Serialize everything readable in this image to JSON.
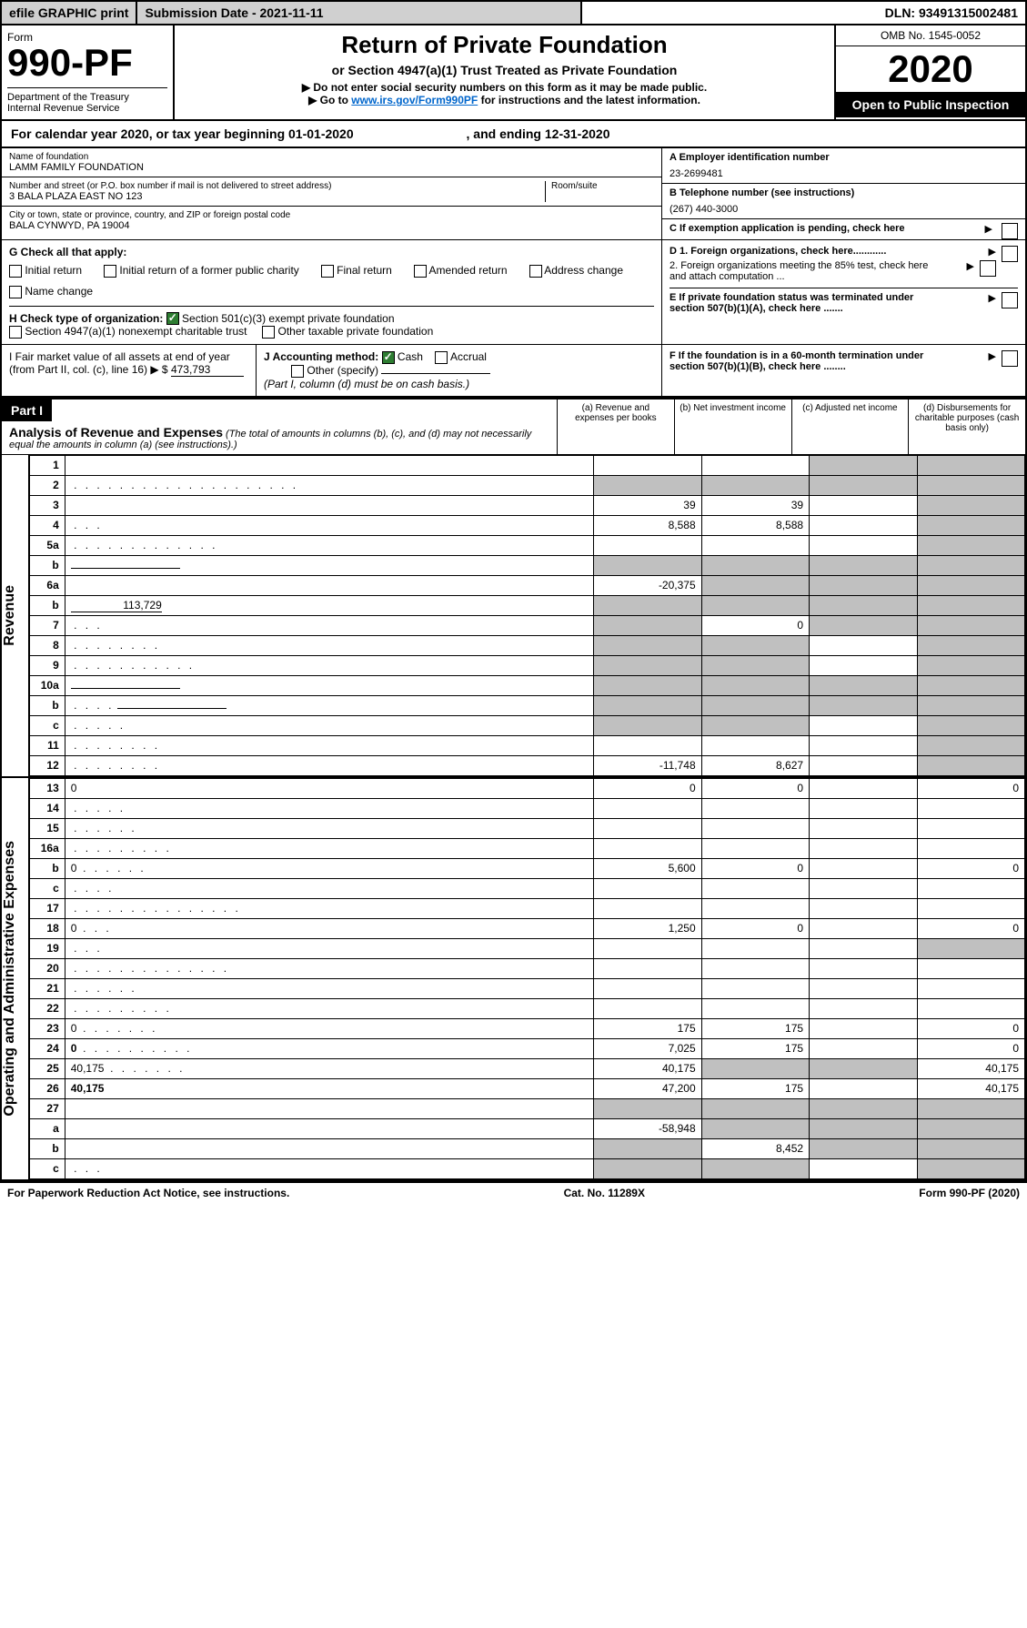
{
  "topbar": {
    "efile": "efile GRAPHIC print",
    "submission": "Submission Date - 2021-11-11",
    "dln": "DLN: 93491315002481"
  },
  "header": {
    "form_word": "Form",
    "form_number": "990-PF",
    "dept": "Department of the Treasury\nInternal Revenue Service",
    "title": "Return of Private Foundation",
    "subtitle1": "or Section 4947(a)(1) Trust Treated as Private Foundation",
    "subtitle2a": "▶ Do not enter social security numbers on this form as it may be made public.",
    "subtitle2b": "▶ Go to ",
    "link": "www.irs.gov/Form990PF",
    "subtitle2c": " for instructions and the latest information.",
    "omb": "OMB No. 1545-0052",
    "year": "2020",
    "open": "Open to Public Inspection"
  },
  "calyear": {
    "text1": "For calendar year 2020, or tax year beginning ",
    "begin": "01-01-2020",
    "text2": " , and ending ",
    "end": "12-31-2020"
  },
  "info": {
    "name_lbl": "Name of foundation",
    "name": "LAMM FAMILY FOUNDATION",
    "addr_lbl": "Number and street (or P.O. box number if mail is not delivered to street address)",
    "addr": "3 BALA PLAZA EAST NO 123",
    "room_lbl": "Room/suite",
    "city_lbl": "City or town, state or province, country, and ZIP or foreign postal code",
    "city": "BALA CYNWYD, PA  19004",
    "a_lbl": "A Employer identification number",
    "a_val": "23-2699481",
    "b_lbl": "B Telephone number (see instructions)",
    "b_val": "(267) 440-3000",
    "c_lbl": "C If exemption application is pending, check here"
  },
  "g": {
    "label": "G Check all that apply:",
    "opts": [
      "Initial return",
      "Initial return of a former public charity",
      "Final return",
      "Amended return",
      "Address change",
      "Name change"
    ],
    "d1": "D 1. Foreign organizations, check here............",
    "d2": "2. Foreign organizations meeting the 85% test, check here and attach computation ...",
    "e": "E  If private foundation status was terminated under section 507(b)(1)(A), check here ......."
  },
  "h": {
    "label": "H Check type of organization:",
    "opt1": "Section 501(c)(3) exempt private foundation",
    "opt2": "Section 4947(a)(1) nonexempt charitable trust",
    "opt3": "Other taxable private foundation"
  },
  "i": {
    "label": "I Fair market value of all assets at end of year (from Part II, col. (c), line 16) ▶ $",
    "val": "473,793"
  },
  "j": {
    "label": "J Accounting method:",
    "cash": "Cash",
    "accrual": "Accrual",
    "other": "Other (specify)",
    "note": "(Part I, column (d) must be on cash basis.)"
  },
  "f": {
    "text": "F  If the foundation is in a 60-month termination under section 507(b)(1)(B), check here ........"
  },
  "part1": {
    "label": "Part I",
    "title": "Analysis of Revenue and Expenses",
    "note": "(The total of amounts in columns (b), (c), and (d) may not necessarily equal the amounts in column (a) (see instructions).)",
    "cols": {
      "a": "(a)  Revenue and expenses per books",
      "b": "(b)  Net investment income",
      "c": "(c)  Adjusted net income",
      "d": "(d)  Disbursements for charitable purposes (cash basis only)"
    }
  },
  "sections": {
    "revenue": "Revenue",
    "expenses": "Operating and Administrative Expenses"
  },
  "rows": [
    {
      "n": "1",
      "d": "",
      "a": "",
      "b": "",
      "c": "",
      "shade_cd": true
    },
    {
      "n": "2",
      "d": "",
      "a": "",
      "b": "",
      "c": "",
      "shade_all": true,
      "dots": ". . . . . . . . . . . . . . . . . . . ."
    },
    {
      "n": "3",
      "d": "",
      "a": "39",
      "b": "39",
      "c": "",
      "shade_d": true
    },
    {
      "n": "4",
      "d": "",
      "a": "8,588",
      "b": "8,588",
      "c": "",
      "shade_d": true,
      "dots": ". . ."
    },
    {
      "n": "5a",
      "d": "",
      "a": "",
      "b": "",
      "c": "",
      "shade_d": true,
      "dots": ". . . . . . . . . . . . ."
    },
    {
      "n": "b",
      "d": "",
      "a": "",
      "b": "",
      "c": "",
      "shade_all": true,
      "underline": true
    },
    {
      "n": "6a",
      "d": "",
      "a": "-20,375",
      "b": "",
      "c": "",
      "shade_bcd": true
    },
    {
      "n": "b",
      "d": "",
      "a": "",
      "b": "",
      "c": "",
      "shade_all": true,
      "val_inline": "113,729"
    },
    {
      "n": "7",
      "d": "",
      "a": "",
      "b": "0",
      "c": "",
      "shade_acd": true,
      "dots": ". . ."
    },
    {
      "n": "8",
      "d": "",
      "a": "",
      "b": "",
      "c": "",
      "shade_abd": true,
      "dots": ". . . . . . . ."
    },
    {
      "n": "9",
      "d": "",
      "a": "",
      "b": "",
      "c": "",
      "shade_abd": true,
      "dots": ". . . . . . . . . . ."
    },
    {
      "n": "10a",
      "d": "",
      "a": "",
      "b": "",
      "c": "",
      "shade_all": true,
      "underline": true
    },
    {
      "n": "b",
      "d": "",
      "a": "",
      "b": "",
      "c": "",
      "shade_all": true,
      "dots": ". . . .",
      "underline": true
    },
    {
      "n": "c",
      "d": "",
      "a": "",
      "b": "",
      "c": "",
      "shade_abd": true,
      "dots": ". . . . ."
    },
    {
      "n": "11",
      "d": "",
      "a": "",
      "b": "",
      "c": "",
      "shade_d": true,
      "dots": ". . . . . . . ."
    },
    {
      "n": "12",
      "d": "",
      "a": "-11,748",
      "b": "8,627",
      "c": "",
      "shade_d": true,
      "dots": ". . . . . . . .",
      "bold": true
    }
  ],
  "exp_rows": [
    {
      "n": "13",
      "d": "0",
      "a": "0",
      "b": "0",
      "c": ""
    },
    {
      "n": "14",
      "d": "",
      "a": "",
      "b": "",
      "c": "",
      "dots": ". . . . ."
    },
    {
      "n": "15",
      "d": "",
      "a": "",
      "b": "",
      "c": "",
      "dots": ". . . . . ."
    },
    {
      "n": "16a",
      "d": "",
      "a": "",
      "b": "",
      "c": "",
      "dots": ". . . . . . . . ."
    },
    {
      "n": "b",
      "d": "0",
      "a": "5,600",
      "b": "0",
      "c": "",
      "dots": ". . . . . ."
    },
    {
      "n": "c",
      "d": "",
      "a": "",
      "b": "",
      "c": "",
      "dots": ". . . ."
    },
    {
      "n": "17",
      "d": "",
      "a": "",
      "b": "",
      "c": "",
      "dots": ". . . . . . . . . . . . . . ."
    },
    {
      "n": "18",
      "d": "0",
      "a": "1,250",
      "b": "0",
      "c": "",
      "dots": ". . ."
    },
    {
      "n": "19",
      "d": "",
      "a": "",
      "b": "",
      "c": "",
      "shade_d": true,
      "dots": ". . ."
    },
    {
      "n": "20",
      "d": "",
      "a": "",
      "b": "",
      "c": "",
      "dots": ". . . . . . . . . . . . . ."
    },
    {
      "n": "21",
      "d": "",
      "a": "",
      "b": "",
      "c": "",
      "dots": ". . . . . ."
    },
    {
      "n": "22",
      "d": "",
      "a": "",
      "b": "",
      "c": "",
      "dots": ". . . . . . . . ."
    },
    {
      "n": "23",
      "d": "0",
      "a": "175",
      "b": "175",
      "c": "",
      "dots": ". . . . . . ."
    },
    {
      "n": "24",
      "d": "0",
      "a": "7,025",
      "b": "175",
      "c": "",
      "dots": ". . . . . . . . . .",
      "bold": true
    },
    {
      "n": "25",
      "d": "40,175",
      "a": "40,175",
      "b": "",
      "c": "",
      "shade_bc": true,
      "dots": ". . . . . . ."
    },
    {
      "n": "26",
      "d": "40,175",
      "a": "47,200",
      "b": "175",
      "c": "",
      "bold": true
    },
    {
      "n": "27",
      "d": "",
      "a": "",
      "b": "",
      "c": "",
      "shade_all": true
    },
    {
      "n": "a",
      "d": "",
      "a": "-58,948",
      "b": "",
      "c": "",
      "shade_bcd": true,
      "bold": true
    },
    {
      "n": "b",
      "d": "",
      "a": "",
      "b": "8,452",
      "c": "",
      "shade_acd": true,
      "bold": true
    },
    {
      "n": "c",
      "d": "",
      "a": "",
      "b": "",
      "c": "",
      "shade_abd": true,
      "bold": true,
      "dots": ". . ."
    }
  ],
  "footer": {
    "left": "For Paperwork Reduction Act Notice, see instructions.",
    "center": "Cat. No. 11289X",
    "right": "Form 990-PF (2020)"
  }
}
